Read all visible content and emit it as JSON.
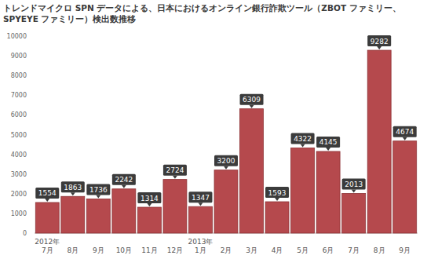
{
  "chart_data": {
    "type": "bar",
    "title": "トレンドマイクロ SPN データによる、日本におけるオンライン銀行詐欺ツール（ZBOT ファミリー、SPYEYE ファミリー）検出数推移",
    "categories": [
      "2012年\n7月",
      "8月",
      "9月",
      "10月",
      "11月",
      "12月",
      "2013年\n1月",
      "2月",
      "3月",
      "4月",
      "5月",
      "6月",
      "7月",
      "8月",
      "9月"
    ],
    "values": [
      1554,
      1863,
      1736,
      2242,
      1314,
      2724,
      1347,
      3200,
      6309,
      1593,
      4322,
      4145,
      2013,
      9282,
      4674
    ],
    "color": "#b5494d",
    "ylim": [
      0,
      10000
    ],
    "yticks": [
      0,
      1000,
      2000,
      3000,
      4000,
      5000,
      6000,
      7000,
      8000,
      9000,
      10000
    ],
    "grid": false,
    "data_labels": true
  }
}
